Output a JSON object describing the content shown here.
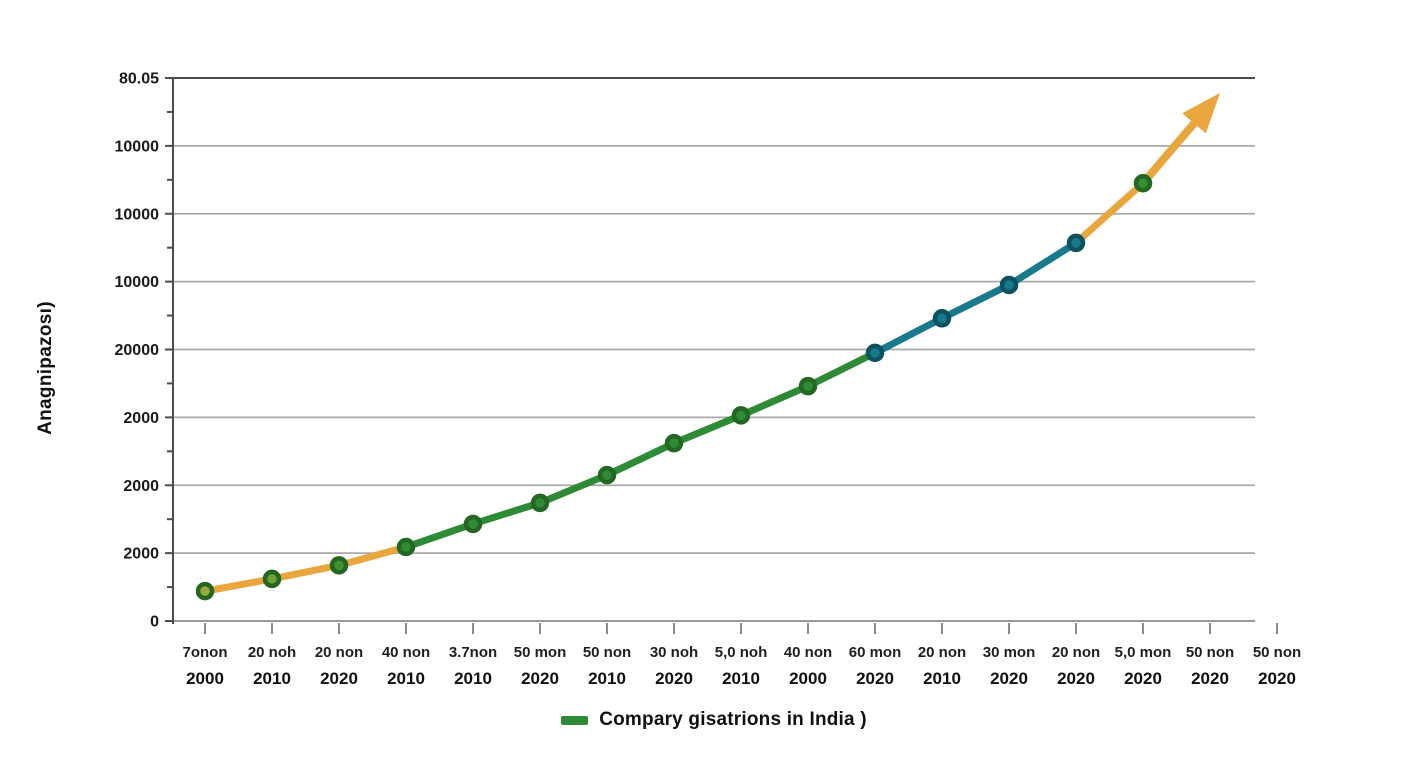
{
  "chart_data": {
    "type": "line",
    "title": "",
    "xlabel": "",
    "ylabel": "Anagnipazosı)",
    "grid": true,
    "legend_position": "bottom-center",
    "ylim": [
      0,
      8
    ],
    "y_axis": {
      "tick_labels_bottom_to_top": [
        "0",
        "2000",
        "2000",
        "2000",
        "20000",
        "10000",
        "10000",
        "10000",
        "80.05"
      ],
      "minor_ticks_between_majors": true
    },
    "x_axis": {
      "categories": [
        {
          "label": "7onon",
          "year": "2000"
        },
        {
          "label": "20 noh",
          "year": "2010"
        },
        {
          "label": "20 non",
          "year": "2020"
        },
        {
          "label": "40 non",
          "year": "2010"
        },
        {
          "label": "3.7non",
          "year": "2010"
        },
        {
          "label": "50 mon",
          "year": "2020"
        },
        {
          "label": "50 non",
          "year": "2010"
        },
        {
          "label": "30 noh",
          "year": "2020"
        },
        {
          "label": "5,0 noh",
          "year": "2010"
        },
        {
          "label": "40 non",
          "year": "2000"
        },
        {
          "label": "60 mon",
          "year": "2020"
        },
        {
          "label": "20 non",
          "year": "2010"
        },
        {
          "label": "30 mon",
          "year": "2020"
        },
        {
          "label": "20 non",
          "year": "2020"
        },
        {
          "label": "5,0 mon",
          "year": "2020"
        },
        {
          "label": "50 non",
          "year": "2020"
        },
        {
          "label": "50 non",
          "year": "2020"
        }
      ]
    },
    "series": [
      {
        "name": "Compary gisatrions in India )",
        "values": [
          0.44,
          0.62,
          0.82,
          1.09,
          1.43,
          1.74,
          2.15,
          2.62,
          3.03,
          3.46,
          3.95,
          4.46,
          4.95,
          5.57,
          6.45
        ],
        "marker_fills": [
          "#9AA83B",
          "#6FA037",
          "#41912F",
          "#2F8B35",
          "#2F8B35",
          "#2F8B35",
          "#2F8B35",
          "#2F8B35",
          "#2F8B35",
          "#2F8B35",
          "#19798D",
          "#19798D",
          "#19798D",
          "#19798D",
          "#33902F"
        ],
        "marker_strokes": [
          "#236722",
          "#236722",
          "#236722",
          "#236722",
          "#236722",
          "#236722",
          "#236722",
          "#236722",
          "#236722",
          "#236722",
          "#0D5260",
          "#0D5260",
          "#0D5260",
          "#0D5260",
          "#236722"
        ]
      }
    ],
    "segments": [
      {
        "start": 0,
        "end": 3,
        "color": "#E9A63C"
      },
      {
        "start": 3,
        "end": 10,
        "color": "#2E8B35"
      },
      {
        "start": 10,
        "end": 13,
        "color": "#19798D"
      },
      {
        "start": 13,
        "end": 14,
        "color": "#E9A63C"
      }
    ],
    "trend_arrow": {
      "from_point": 14,
      "tip_x": 15.15,
      "tip_value": 7.78,
      "color": "#E9A63C"
    },
    "colors": {
      "orange": "#E9A63C",
      "green": "#2E8B35",
      "teal": "#19798D",
      "grid": "#A9A9A9",
      "axis": "#4D4D4D",
      "x_axis_line": "#8C8C8C",
      "label": "#1A1A1A"
    }
  }
}
